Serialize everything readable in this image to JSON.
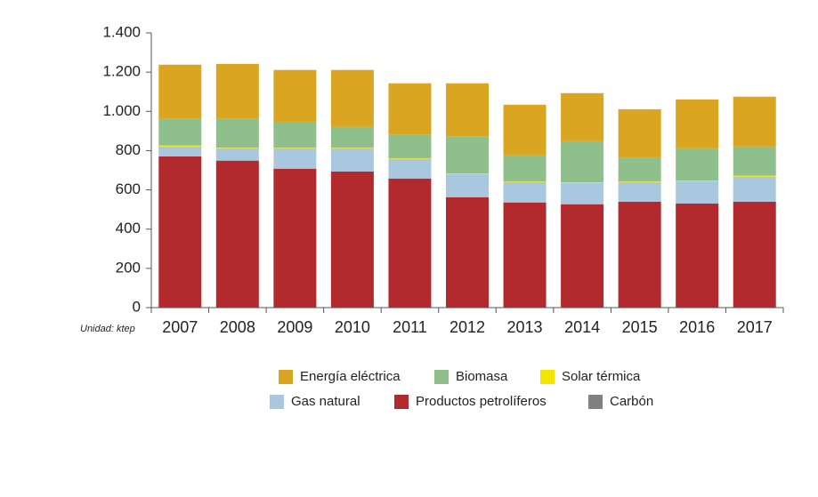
{
  "chart_data": {
    "type": "stacked_bar",
    "unit_label": "Unidad: ktep",
    "categories": [
      "2007",
      "2008",
      "2009",
      "2010",
      "2011",
      "2012",
      "2013",
      "2014",
      "2015",
      "2016",
      "2017"
    ],
    "series": [
      {
        "name": "Carbón",
        "color": "#808080",
        "values": [
          1,
          1,
          1,
          1,
          1,
          1,
          1,
          1,
          1,
          1,
          1
        ]
      },
      {
        "name": "Productos petrolíferos",
        "color": "#b22a2e",
        "values": [
          770,
          748,
          707,
          693,
          657,
          562,
          535,
          526,
          539,
          530,
          539
        ]
      },
      {
        "name": "Gas natural",
        "color": "#a9c8e0",
        "values": [
          50,
          63,
          104,
          118,
          100,
          118,
          104,
          108,
          100,
          113,
          127
        ]
      },
      {
        "name": "Solar térmica",
        "color": "#f5e400",
        "values": [
          5,
          3,
          3,
          3,
          3,
          3,
          3,
          3,
          3,
          3,
          5
        ]
      },
      {
        "name": "Biomasa",
        "color": "#8fbf8a",
        "values": [
          136,
          147,
          128,
          106,
          119,
          187,
          133,
          210,
          119,
          165,
          149
        ]
      },
      {
        "name": "Energía eléctrica",
        "color": "#daa520",
        "values": [
          276,
          280,
          268,
          290,
          263,
          272,
          258,
          245,
          249,
          249,
          254
        ]
      }
    ],
    "ylim": [
      0,
      1400
    ],
    "yticks": [
      0,
      200,
      400,
      600,
      800,
      {
        "value": 1000,
        "label": "1.000"
      },
      {
        "value": 1200,
        "label": "1.200"
      },
      {
        "value": 1400,
        "label": "1.400"
      }
    ]
  }
}
